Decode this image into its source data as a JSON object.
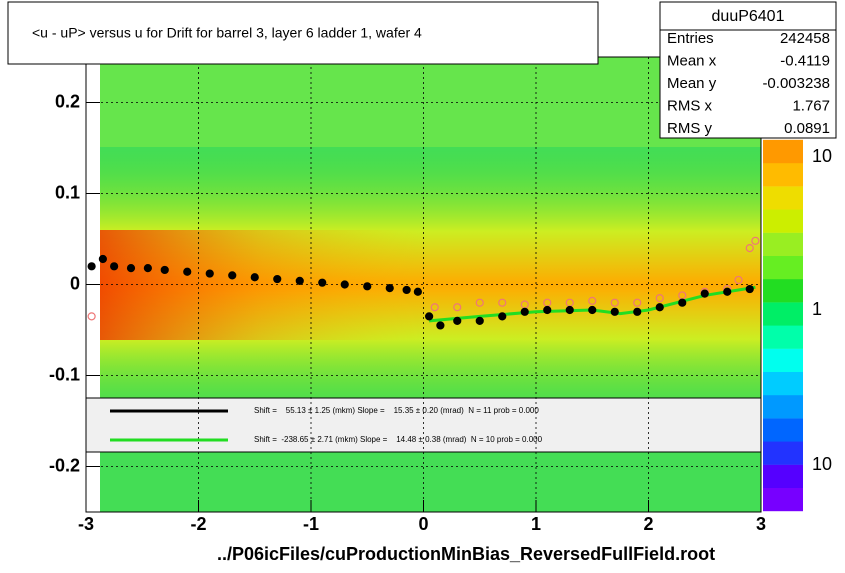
{
  "chart_data": {
    "type": "scatter",
    "title": "<u - uP>       versus   u for Drift for barrel 3, layer 6 ladder 1, wafer 4",
    "x_label": "../P06icFiles/cuProductionMinBias_ReversedFullField.root",
    "xlim": [
      -3,
      3
    ],
    "ylim": [
      -0.25,
      0.25
    ],
    "xticks": [
      -3,
      -2,
      -1,
      0,
      1,
      2,
      3
    ],
    "yticks": [
      -0.2,
      -0.1,
      0,
      0.1,
      0.2
    ],
    "grid": true,
    "stats": {
      "title": "duuP6401",
      "rows": [
        [
          "Entries",
          "242458"
        ],
        [
          "Mean x",
          "-0.4119"
        ],
        [
          "Mean y",
          "-0.003238"
        ],
        [
          "RMS x",
          "1.767"
        ],
        [
          "RMS y",
          "0.0891"
        ]
      ]
    },
    "colorbar_labels": [
      "10",
      "1",
      "10"
    ],
    "legend": [
      {
        "color": "#000000",
        "text": "Shift =    55.13 ± 1.25 (mkm) Slope =    15.35 ± 0.20 (mrad)  N = 11 prob = 0.000"
      },
      {
        "color": "#22dd22",
        "text": "Shift =  -238.65 ± 2.71 (mkm) Slope =    14.48 ± 0.38 (mrad)  N = 10 prob = 0.000"
      }
    ],
    "series": [
      {
        "color": "#000000",
        "marker": "filled",
        "x": [
          -2.95,
          -2.85,
          -2.75,
          -2.6,
          -2.45,
          -2.3,
          -2.1,
          -1.9,
          -1.7,
          -1.5,
          -1.3,
          -1.1,
          -0.9,
          -0.7,
          -0.5,
          -0.3,
          -0.15,
          -0.05,
          0.05,
          0.15,
          0.3,
          0.5,
          0.7,
          0.9,
          1.1,
          1.3,
          1.5,
          1.7,
          1.9,
          2.1,
          2.3,
          2.5,
          2.7,
          2.9
        ],
        "values": [
          0.02,
          0.028,
          0.02,
          0.018,
          0.018,
          0.016,
          0.014,
          0.012,
          0.01,
          0.008,
          0.006,
          0.004,
          0.002,
          0.0,
          -0.002,
          -0.004,
          -0.006,
          -0.008,
          -0.035,
          -0.045,
          -0.04,
          -0.04,
          -0.035,
          -0.03,
          -0.028,
          -0.028,
          -0.028,
          -0.03,
          -0.03,
          -0.025,
          -0.02,
          -0.01,
          -0.008,
          -0.005
        ]
      },
      {
        "color": "#ee7777",
        "marker": "open",
        "x": [
          -2.95,
          0.1,
          0.3,
          0.5,
          0.7,
          0.9,
          1.1,
          1.3,
          1.5,
          1.7,
          1.9,
          2.1,
          2.3,
          2.5,
          2.7,
          2.8,
          2.9,
          2.95
        ],
        "values": [
          -0.035,
          -0.025,
          -0.025,
          -0.02,
          -0.02,
          -0.022,
          -0.02,
          -0.02,
          -0.018,
          -0.02,
          -0.02,
          -0.015,
          -0.012,
          -0.008,
          -0.005,
          0.005,
          0.04,
          0.048
        ]
      },
      {
        "color": "#22dd22",
        "marker": "line",
        "x": [
          0.05,
          0.5,
          1.0,
          1.5,
          1.75,
          2.0,
          2.5,
          2.95
        ],
        "values": [
          -0.04,
          -0.035,
          -0.03,
          -0.028,
          -0.032,
          -0.028,
          -0.012,
          -0.003
        ]
      }
    ]
  }
}
